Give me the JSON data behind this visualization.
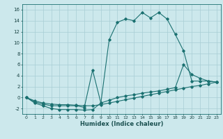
{
  "xlabel": "Humidex (Indice chaleur)",
  "bg_color": "#cce8ec",
  "grid_color": "#a8cdd4",
  "line_color": "#1a7070",
  "xlim": [
    -0.5,
    23.5
  ],
  "ylim": [
    -3,
    17
  ],
  "xticks": [
    0,
    1,
    2,
    3,
    4,
    5,
    6,
    7,
    8,
    9,
    10,
    11,
    12,
    13,
    14,
    15,
    16,
    17,
    18,
    19,
    20,
    21,
    22,
    23
  ],
  "yticks": [
    -2,
    0,
    2,
    4,
    6,
    8,
    10,
    12,
    14,
    16
  ],
  "line1_x": [
    0,
    1,
    2,
    3,
    4,
    5,
    6,
    7,
    8,
    9,
    10,
    11,
    12,
    13,
    14,
    15,
    16,
    17,
    18,
    19,
    20,
    21,
    22,
    23
  ],
  "line1_y": [
    0,
    -1,
    -1.5,
    -2,
    -2.2,
    -2.2,
    -2.2,
    -2.3,
    -2.2,
    -1,
    10.5,
    13.7,
    14.3,
    14.0,
    15.5,
    14.5,
    15.5,
    14.3,
    11.5,
    8.5,
    3.0,
    3.0,
    3.0,
    2.8
  ],
  "line2_x": [
    0,
    1,
    2,
    3,
    4,
    5,
    6,
    7,
    8,
    9,
    10,
    11,
    12,
    13,
    14,
    15,
    16,
    17,
    18,
    19,
    20,
    21,
    22,
    23
  ],
  "line2_y": [
    0,
    -0.8,
    -1.2,
    -1.5,
    -1.5,
    -1.5,
    -1.5,
    -1.8,
    5.0,
    -1.0,
    -0.5,
    0.0,
    0.3,
    0.5,
    0.8,
    1.0,
    1.2,
    1.5,
    1.8,
    6.0,
    4.2,
    3.5,
    3.0,
    2.8
  ],
  "line3_x": [
    0,
    1,
    2,
    3,
    4,
    5,
    6,
    7,
    8,
    9,
    10,
    11,
    12,
    13,
    14,
    15,
    16,
    17,
    18,
    19,
    20,
    21,
    22,
    23
  ],
  "line3_y": [
    0,
    -0.6,
    -1.0,
    -1.2,
    -1.3,
    -1.3,
    -1.4,
    -1.5,
    -1.5,
    -1.3,
    -1.0,
    -0.7,
    -0.4,
    -0.1,
    0.2,
    0.5,
    0.8,
    1.1,
    1.4,
    1.7,
    2.0,
    2.2,
    2.5,
    2.8
  ]
}
